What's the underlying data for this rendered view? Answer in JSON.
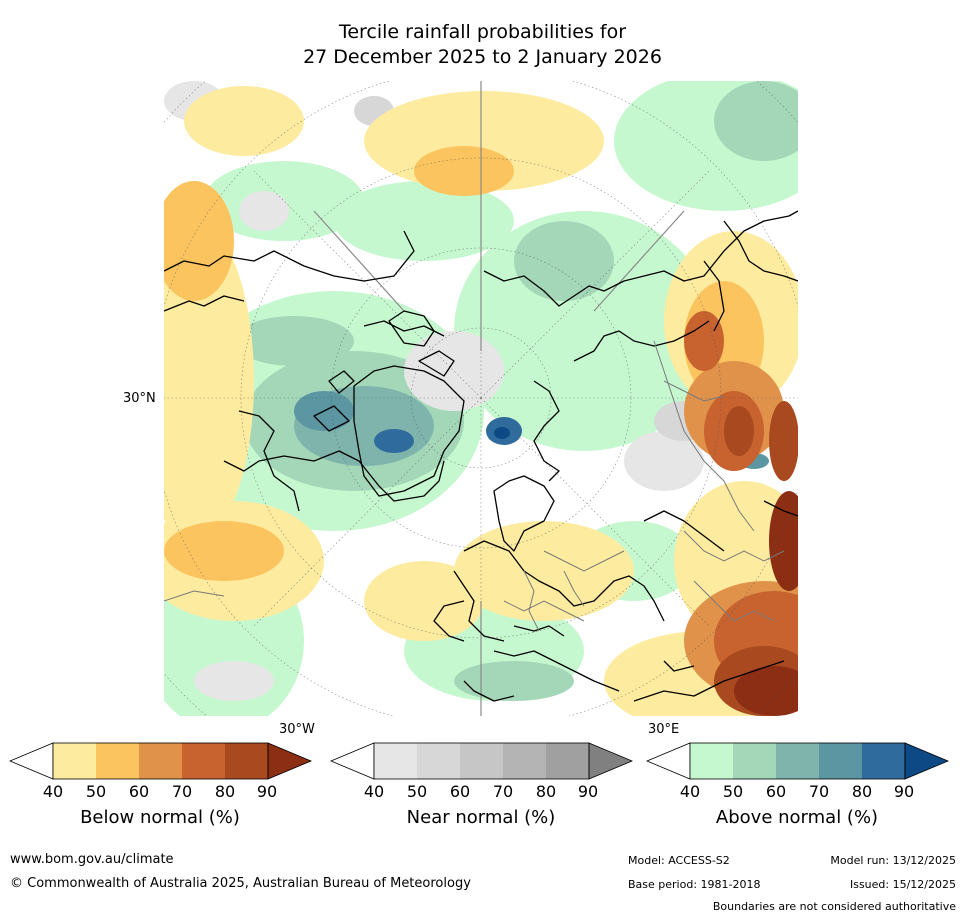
{
  "title": {
    "line1": "Tercile rainfall probabilities for",
    "line2": "27 December 2025 to 2 January 2026"
  },
  "map": {
    "lat_label": "30°N",
    "lon_label_west": "30°W",
    "lon_label_east": "30°E"
  },
  "colorbars": [
    {
      "label": "Below normal (%)",
      "ticks": [
        "40",
        "50",
        "60",
        "70",
        "80",
        "90"
      ],
      "colors": [
        "#ffffff",
        "#fdeb9f",
        "#fcc45e",
        "#e1924a",
        "#c8622f",
        "#a8491f",
        "#8b2e14"
      ]
    },
    {
      "label": "Near normal (%)",
      "ticks": [
        "40",
        "50",
        "60",
        "70",
        "80",
        "90"
      ],
      "colors": [
        "#ffffff",
        "#e6e6e6",
        "#d7d7d7",
        "#c6c6c6",
        "#b4b4b4",
        "#a0a0a0",
        "#808080"
      ]
    },
    {
      "label": "Above normal (%)",
      "ticks": [
        "40",
        "50",
        "60",
        "70",
        "80",
        "90"
      ],
      "colors": [
        "#ffffff",
        "#c6f8d0",
        "#a3d7b8",
        "#7fb4ad",
        "#5b96a2",
        "#2f6b9c",
        "#0d4a85"
      ]
    }
  ],
  "footer": {
    "website": "www.bom.gov.au/climate",
    "copyright": "© Commonwealth of Australia 2025, Australian Bureau of Meteorology",
    "model": "Model: ACCESS-S2",
    "model_run": "Model run: 13/12/2025",
    "base_period": "Base period: 1981-2018",
    "issued": "Issued: 15/12/2025",
    "disclaimer": "Boundaries are not considered authoritative"
  }
}
